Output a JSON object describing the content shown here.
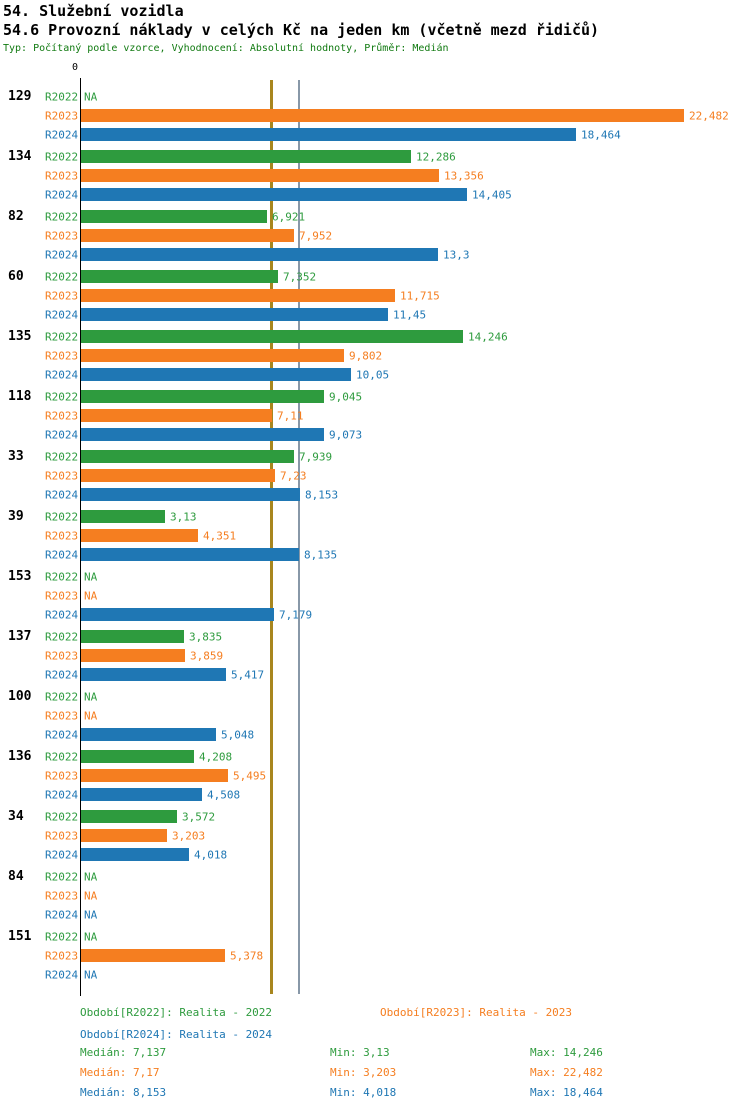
{
  "header": {
    "title_line1": "54. Služební vozidla",
    "title_line2": "54.6 Provozní náklady v celých Kč na jeden km (včetně mezd řidičů)",
    "subtitle": "Typ: Počítaný podle vzorce, Vyhodnocení: Absolutní hodnoty, Průměr: Medián"
  },
  "axis": {
    "zero_label": "0"
  },
  "colors": {
    "r2022": "#2e9b3e",
    "r2023": "#f57e20",
    "r2024": "#1f77b4",
    "subtitle_text": "#117a11",
    "median_line_2022_2023": "#a8861e",
    "median_line_2024": "#8898a8"
  },
  "chart_data": {
    "type": "bar",
    "orientation": "horizontal",
    "value_unit": "Kč/km",
    "x_axis": {
      "min": 0,
      "max_visible": 22.482,
      "grid": false
    },
    "series_labels": [
      "R2022",
      "R2023",
      "R2024"
    ],
    "groups": [
      {
        "label": "129",
        "values": [
          null,
          22.482,
          18.464
        ],
        "display": [
          "NA",
          "22,482",
          "18,464"
        ]
      },
      {
        "label": "134",
        "values": [
          12.286,
          13.356,
          14.405
        ],
        "display": [
          "12,286",
          "13,356",
          "14,405"
        ]
      },
      {
        "label": "82",
        "values": [
          6.921,
          7.952,
          13.3
        ],
        "display": [
          "6,921",
          "7,952",
          "13,3"
        ]
      },
      {
        "label": "60",
        "values": [
          7.352,
          11.715,
          11.45
        ],
        "display": [
          "7,352",
          "11,715",
          "11,45"
        ]
      },
      {
        "label": "135",
        "values": [
          14.246,
          9.802,
          10.05
        ],
        "display": [
          "14,246",
          "9,802",
          "10,05"
        ]
      },
      {
        "label": "118",
        "values": [
          9.045,
          7.11,
          9.073
        ],
        "display": [
          "9,045",
          "7,11",
          "9,073"
        ]
      },
      {
        "label": "33",
        "values": [
          7.939,
          7.23,
          8.153
        ],
        "display": [
          "7,939",
          "7,23",
          "8,153"
        ]
      },
      {
        "label": "39",
        "values": [
          3.13,
          4.351,
          8.135
        ],
        "display": [
          "3,13",
          "4,351",
          "8,135"
        ]
      },
      {
        "label": "153",
        "values": [
          null,
          null,
          7.179
        ],
        "display": [
          "NA",
          "NA",
          "7,179"
        ]
      },
      {
        "label": "137",
        "values": [
          3.835,
          3.859,
          5.417
        ],
        "display": [
          "3,835",
          "3,859",
          "5,417"
        ]
      },
      {
        "label": "100",
        "values": [
          null,
          null,
          5.048
        ],
        "display": [
          "NA",
          "NA",
          "5,048"
        ]
      },
      {
        "label": "136",
        "values": [
          4.208,
          5.495,
          4.508
        ],
        "display": [
          "4,208",
          "5,495",
          "4,508"
        ]
      },
      {
        "label": "34",
        "values": [
          3.572,
          3.203,
          4.018
        ],
        "display": [
          "3,572",
          "3,203",
          "4,018"
        ]
      },
      {
        "label": "84",
        "values": [
          null,
          null,
          null
        ],
        "display": [
          "NA",
          "NA",
          "NA"
        ]
      },
      {
        "label": "151",
        "values": [
          null,
          5.378,
          null
        ],
        "display": [
          "NA",
          "5,378",
          "NA"
        ]
      }
    ],
    "median_lines": [
      {
        "series": "R2022",
        "value": 7.137
      },
      {
        "series": "R2023",
        "value": 7.17
      },
      {
        "series": "R2024",
        "value": 8.153
      }
    ]
  },
  "legend": {
    "r2022": "Období[R2022]: Realita - 2022",
    "r2023": "Období[R2023]: Realita - 2023",
    "r2024": "Období[R2024]: Realita - 2024"
  },
  "stats": {
    "r2022": {
      "median": "Medián: 7,137",
      "min": "Min: 3,13",
      "max": "Max: 14,246"
    },
    "r2023": {
      "median": "Medián: 7,17",
      "min": "Min: 3,203",
      "max": "Max: 22,482"
    },
    "r2024": {
      "median": "Medián: 8,153",
      "min": "Min: 4,018",
      "max": "Max: 18,464"
    }
  }
}
